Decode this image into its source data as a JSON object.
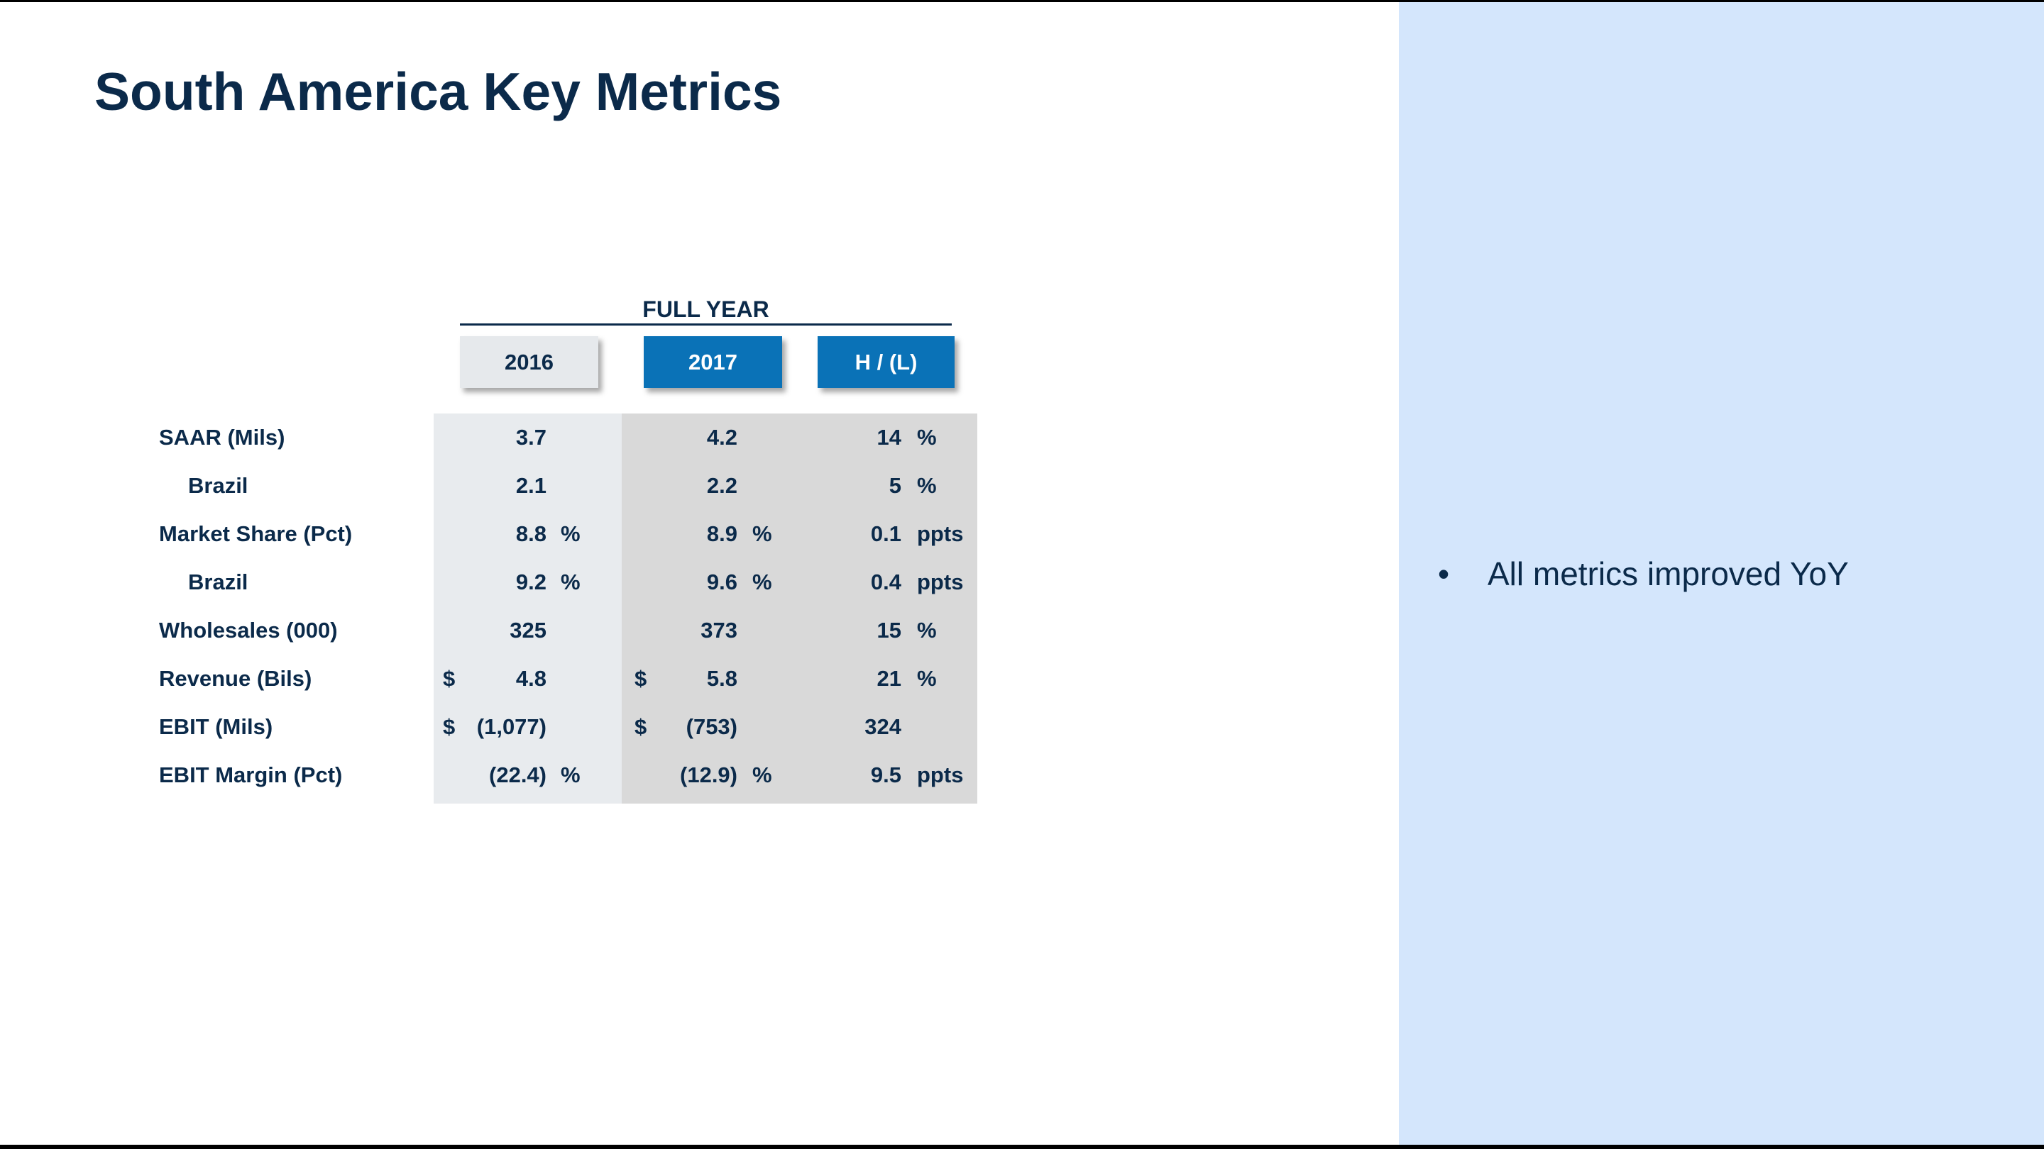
{
  "title": "South America Key Metrics",
  "table": {
    "group_header": "FULL YEAR",
    "columns": [
      "2016",
      "2017",
      "H / (L)"
    ],
    "rows": [
      {
        "label": "SAAR (Mils)",
        "indent": false,
        "d1": "",
        "v1": "3.7",
        "u1": "",
        "d2": "",
        "v2": "4.2",
        "u2": "",
        "v3": "14",
        "u3": "%"
      },
      {
        "label": "Brazil",
        "indent": true,
        "d1": "",
        "v1": "2.1",
        "u1": "",
        "d2": "",
        "v2": "2.2",
        "u2": "",
        "v3": "5",
        "u3": "%"
      },
      {
        "label": "Market Share (Pct)",
        "indent": false,
        "d1": "",
        "v1": "8.8",
        "u1": "%",
        "d2": "",
        "v2": "8.9",
        "u2": "%",
        "v3": "0.1",
        "u3": "ppts"
      },
      {
        "label": "Brazil",
        "indent": true,
        "d1": "",
        "v1": "9.2",
        "u1": "%",
        "d2": "",
        "v2": "9.6",
        "u2": "%",
        "v3": "0.4",
        "u3": "ppts"
      },
      {
        "label": "Wholesales (000)",
        "indent": false,
        "d1": "",
        "v1": "325",
        "u1": "",
        "d2": "",
        "v2": "373",
        "u2": "",
        "v3": "15",
        "u3": "%"
      },
      {
        "label": "Revenue (Bils)",
        "indent": false,
        "d1": "$",
        "v1": "4.8",
        "u1": "",
        "d2": "$",
        "v2": "5.8",
        "u2": "",
        "v3": "21",
        "u3": "%"
      },
      {
        "label": "EBIT (Mils)",
        "indent": false,
        "d1": "$",
        "v1": "(1,077)",
        "u1": "",
        "d2": "$",
        "v2": "(753)",
        "u2": "",
        "v3": "324",
        "u3": ""
      },
      {
        "label": "EBIT Margin (Pct)",
        "indent": false,
        "d1": "",
        "v1": "(22.4)",
        "u1": "%",
        "d2": "",
        "v2": "(12.9)",
        "u2": "%",
        "v3": "9.5",
        "u3": "ppts"
      }
    ]
  },
  "side_panel": {
    "bullet_symbol": "•",
    "bullets": [
      "All metrics improved YoY"
    ]
  }
}
